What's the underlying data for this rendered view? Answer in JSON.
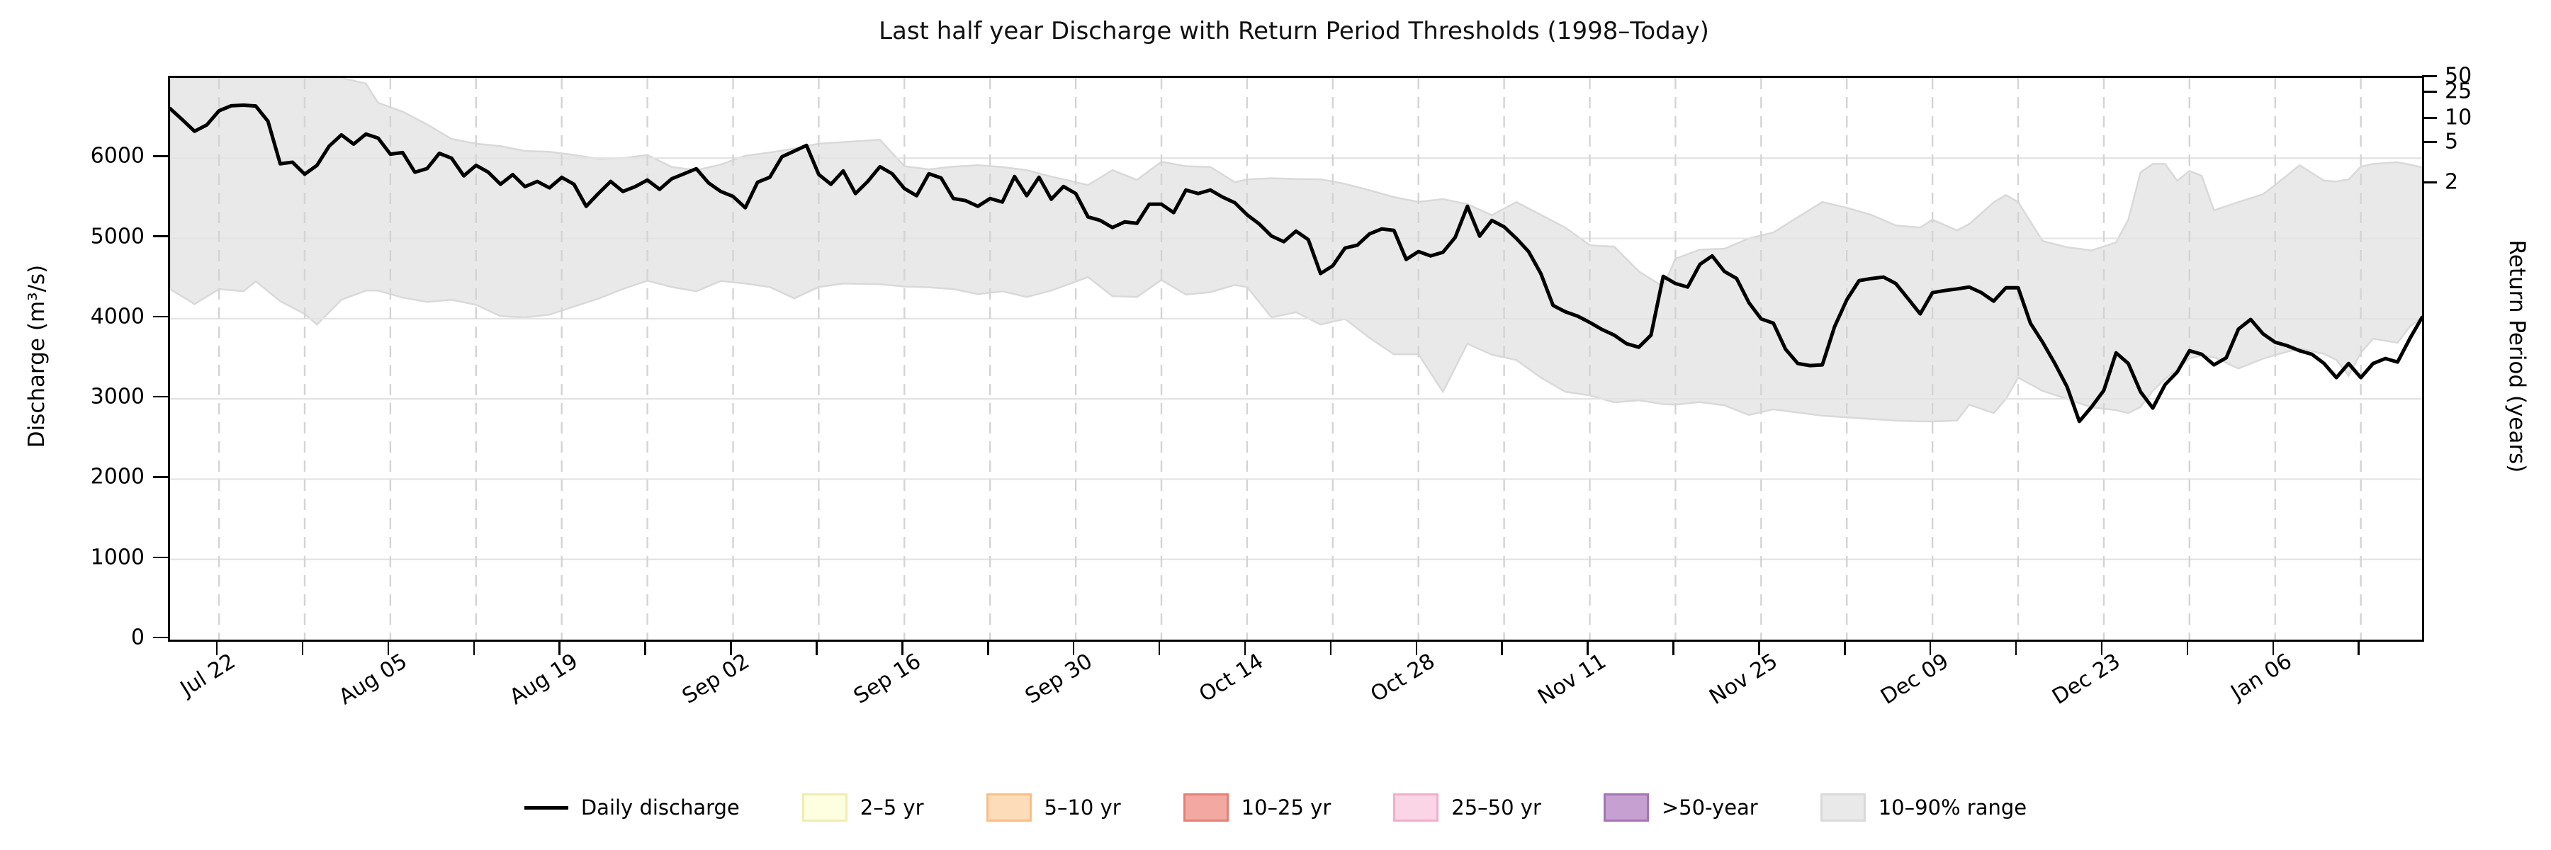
{
  "title": "Last half year Discharge with Return Period Thresholds (1998–Today)",
  "axes": {
    "y_left_label": "Discharge (m³/s)",
    "y_right_label": "Return Period (years)",
    "y_ticks": [
      0,
      1000,
      2000,
      3000,
      4000,
      5000,
      6000
    ],
    "y_max": 7000,
    "right_ticks": [
      {
        "label": "50",
        "value": 6997
      },
      {
        "label": "25",
        "value": 6804
      },
      {
        "label": "10",
        "value": 6477
      },
      {
        "label": "5",
        "value": 6177
      },
      {
        "label": "2",
        "value": 5674
      }
    ],
    "x_ticks": [
      {
        "day": 4,
        "label": "Jul 22"
      },
      {
        "day": 11,
        "label": ""
      },
      {
        "day": 18,
        "label": "Aug 05"
      },
      {
        "day": 25,
        "label": ""
      },
      {
        "day": 32,
        "label": "Aug 19"
      },
      {
        "day": 39,
        "label": ""
      },
      {
        "day": 46,
        "label": "Sep 02"
      },
      {
        "day": 53,
        "label": ""
      },
      {
        "day": 60,
        "label": "Sep 16"
      },
      {
        "day": 67,
        "label": ""
      },
      {
        "day": 74,
        "label": "Sep 30"
      },
      {
        "day": 81,
        "label": ""
      },
      {
        "day": 88,
        "label": "Oct 14"
      },
      {
        "day": 95,
        "label": ""
      },
      {
        "day": 102,
        "label": "Oct 28"
      },
      {
        "day": 109,
        "label": ""
      },
      {
        "day": 116,
        "label": "Nov 11"
      },
      {
        "day": 123,
        "label": ""
      },
      {
        "day": 130,
        "label": "Nov 25"
      },
      {
        "day": 137,
        "label": ""
      },
      {
        "day": 144,
        "label": "Dec 09"
      },
      {
        "day": 151,
        "label": ""
      },
      {
        "day": 158,
        "label": "Dec 23"
      },
      {
        "day": 165,
        "label": ""
      },
      {
        "day": 172,
        "label": "Jan 06"
      },
      {
        "day": 179,
        "label": ""
      }
    ]
  },
  "legend": {
    "items": [
      {
        "label": "Daily discharge",
        "type": "line",
        "fill": "#000000",
        "stroke": "#000000"
      },
      {
        "label": "2–5 yr",
        "type": "patch",
        "fill": "#FEFEE0",
        "stroke": "#F0ECB2"
      },
      {
        "label": "5–10 yr",
        "type": "patch",
        "fill": "#FDDCBA",
        "stroke": "#F9BE86"
      },
      {
        "label": "10–25 yr",
        "type": "patch",
        "fill": "#F1A9A2",
        "stroke": "#E77F76"
      },
      {
        "label": "25–50 yr",
        "type": "patch",
        "fill": "#F9D5E5",
        "stroke": "#F0AECE"
      },
      {
        "label": ">50-year",
        "type": "patch",
        "fill": "#C5A0D0",
        "stroke": "#A674B5"
      },
      {
        "label": "10–90% range",
        "type": "patch",
        "fill": "#E9E9E9",
        "stroke": "#DADADA"
      }
    ]
  },
  "colors": {
    "discharge_line": "#000000",
    "band_fill": "#e9e9e9",
    "band_edge": "#d9d9d9",
    "grid_h": "#e3e3e3",
    "grid_v": "#d4d4d4"
  },
  "chart_data": {
    "type": "line",
    "title": "Last half year Discharge with Return Period Thresholds (1998–Today)",
    "xlabel": "",
    "ylabel": "Discharge (m³/s)",
    "ylabel_right": "Return Period (years)",
    "ylim": [
      0,
      7000
    ],
    "x_is_days_since": "Jul 18",
    "x_span_days": 184,
    "grid": true,
    "legend_position": "bottom-center",
    "return_period_thresholds": {
      "2": 5674,
      "5": 6177,
      "10": 6477,
      "25": 6804,
      "50": 6997
    },
    "daily_discharge": [
      6618,
      6480,
      6335,
      6414,
      6590,
      6653,
      6660,
      6650,
      6460,
      5930,
      5950,
      5800,
      5910,
      6150,
      6290,
      6175,
      6300,
      6250,
      6050,
      6070,
      5825,
      5870,
      6060,
      6000,
      5780,
      5910,
      5825,
      5675,
      5795,
      5645,
      5710,
      5630,
      5760,
      5675,
      5400,
      5560,
      5710,
      5585,
      5645,
      5727,
      5612,
      5744,
      5806,
      5868,
      5691,
      5585,
      5523,
      5382,
      5700,
      5762,
      6018,
      6088,
      6159,
      5797,
      5674,
      5841,
      5559,
      5709,
      5894,
      5806,
      5621,
      5532,
      5806,
      5753,
      5497,
      5471,
      5400,
      5497,
      5453,
      5771,
      5532,
      5762,
      5488,
      5647,
      5559,
      5268,
      5224,
      5135,
      5206,
      5188,
      5426,
      5426,
      5321,
      5603,
      5559,
      5603,
      5515,
      5444,
      5294,
      5179,
      5029,
      4959,
      5091,
      4985,
      4562,
      4659,
      4880,
      4915,
      5056,
      5118,
      5100,
      4738,
      4836,
      4782,
      4827,
      5012,
      5400,
      5029,
      5224,
      5144,
      5000,
      4836,
      4562,
      4165,
      4086,
      4032,
      3953,
      3865,
      3794,
      3688,
      3644,
      3794,
      4527,
      4438,
      4394,
      4677,
      4782,
      4588,
      4500,
      4200,
      3997,
      3944,
      3618,
      3441,
      3415,
      3424,
      3900,
      4235,
      4473,
      4500,
      4518,
      4438,
      4250,
      4059,
      4324,
      4350,
      4370,
      4394,
      4324,
      4218,
      4385,
      4385,
      3944,
      3706,
      3441,
      3150,
      2720,
      2900,
      3106,
      3574,
      3441,
      3088,
      2885,
      3176,
      3335,
      3600,
      3556,
      3424,
      3512,
      3870,
      3990,
      3812,
      3706,
      3662,
      3600,
      3556,
      3441,
      3265,
      3441,
      3265,
      3441,
      3503,
      3459,
      3750,
      4015
    ],
    "band_10_90_control_points": [
      [
        0,
        4368,
        7000
      ],
      [
        2,
        4182,
        7000
      ],
      [
        4,
        4368,
        7000
      ],
      [
        6,
        4341,
        7000
      ],
      [
        7,
        4465,
        7000
      ],
      [
        9,
        4218,
        7000
      ],
      [
        11,
        4059,
        7000
      ],
      [
        12,
        3926,
        7000
      ],
      [
        14,
        4235,
        7000
      ],
      [
        16,
        4350,
        6930
      ],
      [
        17,
        4350,
        6690
      ],
      [
        19,
        4262,
        6580
      ],
      [
        21,
        4209,
        6420
      ],
      [
        23,
        4235,
        6240
      ],
      [
        25,
        4173,
        6180
      ],
      [
        27,
        4032,
        6150
      ],
      [
        29,
        4015,
        6090
      ],
      [
        31,
        4050,
        6080
      ],
      [
        33,
        4150,
        6040
      ],
      [
        35,
        4250,
        5990
      ],
      [
        37,
        4370,
        6000
      ],
      [
        39,
        4473,
        6040
      ],
      [
        41,
        4394,
        5890
      ],
      [
        43,
        4341,
        5850
      ],
      [
        45,
        4470,
        5920
      ],
      [
        47,
        4438,
        6030
      ],
      [
        49,
        4394,
        6070
      ],
      [
        51,
        4253,
        6120
      ],
      [
        53,
        4394,
        6180
      ],
      [
        55,
        4438,
        6200
      ],
      [
        58,
        4429,
        6230
      ],
      [
        60,
        4400,
        5900
      ],
      [
        62,
        4390,
        5860
      ],
      [
        64,
        4368,
        5894
      ],
      [
        66,
        4306,
        5912
      ],
      [
        68,
        4340,
        5890
      ],
      [
        70,
        4270,
        5850
      ],
      [
        72,
        4350,
        5770
      ],
      [
        75,
        4518,
        5665
      ],
      [
        77,
        4280,
        5850
      ],
      [
        79,
        4270,
        5730
      ],
      [
        81,
        4482,
        5956
      ],
      [
        83,
        4300,
        5900
      ],
      [
        85,
        4330,
        5890
      ],
      [
        87,
        4420,
        5700
      ],
      [
        88,
        4394,
        5735
      ],
      [
        90,
        4015,
        5750
      ],
      [
        92,
        4080,
        5740
      ],
      [
        94,
        3927,
        5737
      ],
      [
        96,
        3997,
        5680
      ],
      [
        98,
        3760,
        5600
      ],
      [
        100,
        3556,
        5515
      ],
      [
        102,
        3556,
        5455
      ],
      [
        104,
        3088,
        5490
      ],
      [
        106,
        3688,
        5426
      ],
      [
        108,
        3550,
        5290
      ],
      [
        110,
        3485,
        5453
      ],
      [
        112,
        3265,
        5294
      ],
      [
        114,
        3088,
        5135
      ],
      [
        116,
        3044,
        4915
      ],
      [
        118,
        2956,
        4897
      ],
      [
        120,
        2983,
        4590
      ],
      [
        122,
        2935,
        4400
      ],
      [
        123,
        2929,
        4747
      ],
      [
        125,
        2960,
        4860
      ],
      [
        127,
        2920,
        4871
      ],
      [
        129,
        2800,
        5000
      ],
      [
        131,
        2870,
        5074
      ],
      [
        133,
        2830,
        5265
      ],
      [
        135,
        2790,
        5453
      ],
      [
        137,
        2770,
        5382
      ],
      [
        139,
        2750,
        5294
      ],
      [
        141,
        2730,
        5162
      ],
      [
        143,
        2720,
        5135
      ],
      [
        144,
        2720,
        5233
      ],
      [
        146,
        2730,
        5100
      ],
      [
        147,
        2929,
        5179
      ],
      [
        149,
        2823,
        5450
      ],
      [
        150,
        3000,
        5541
      ],
      [
        151,
        3265,
        5453
      ],
      [
        153,
        3100,
        4968
      ],
      [
        155,
        3000,
        4890
      ],
      [
        157,
        2894,
        4850
      ],
      [
        159,
        2860,
        4950
      ],
      [
        160,
        2823,
        5233
      ],
      [
        161,
        2900,
        5824
      ],
      [
        162,
        3100,
        5929
      ],
      [
        163,
        3250,
        5929
      ],
      [
        164,
        3371,
        5718
      ],
      [
        165,
        3503,
        5841
      ],
      [
        166,
        3540,
        5780
      ],
      [
        167,
        3520,
        5350
      ],
      [
        169,
        3379,
        5453
      ],
      [
        171,
        3500,
        5550
      ],
      [
        172,
        3547,
        5665
      ],
      [
        174,
        3630,
        5912
      ],
      [
        176,
        3560,
        5720
      ],
      [
        177,
        3485,
        5709
      ],
      [
        178,
        3291,
        5735
      ],
      [
        179,
        3574,
        5894
      ],
      [
        180,
        3750,
        5929
      ],
      [
        182,
        3700,
        5950
      ],
      [
        183,
        3900,
        5920
      ],
      [
        184,
        4015,
        5885
      ]
    ]
  }
}
